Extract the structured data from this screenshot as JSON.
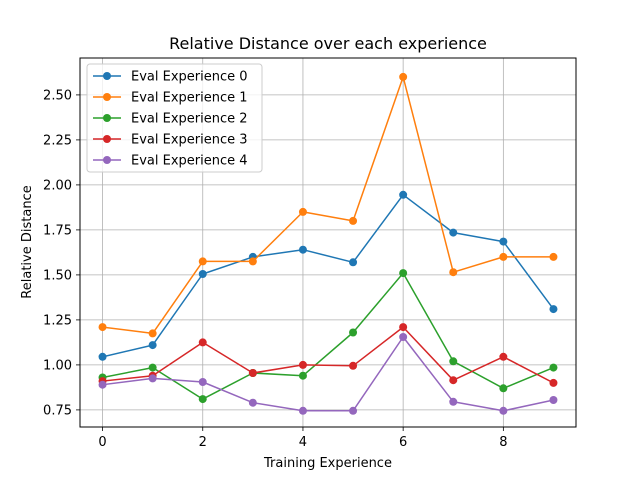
{
  "chart_data": {
    "type": "line",
    "title": "Relative Distance over each experience",
    "xlabel": "Training Experience",
    "ylabel": "Relative Distance",
    "x": [
      0,
      1,
      2,
      3,
      4,
      5,
      6,
      7,
      8,
      9
    ],
    "xlim": [
      -0.45,
      9.45
    ],
    "ylim": [
      0.655,
      2.705
    ],
    "xticks": [
      0,
      2,
      4,
      6,
      8
    ],
    "xtick_labels": [
      "0",
      "2",
      "4",
      "6",
      "8"
    ],
    "yticks": [
      0.75,
      1.0,
      1.25,
      1.5,
      1.75,
      2.0,
      2.25,
      2.5
    ],
    "ytick_labels": [
      "0.75",
      "1.00",
      "1.25",
      "1.50",
      "1.75",
      "2.00",
      "2.25",
      "2.50"
    ],
    "grid": true,
    "legend_position": "top-left",
    "series": [
      {
        "name": "Eval Experience 0",
        "color": "#1f77b4",
        "values": [
          1.045,
          1.11,
          1.505,
          1.6,
          1.64,
          1.57,
          1.945,
          1.735,
          1.685,
          1.31
        ]
      },
      {
        "name": "Eval Experience 1",
        "color": "#ff7f0e",
        "values": [
          1.21,
          1.175,
          1.575,
          1.575,
          1.85,
          1.8,
          2.6,
          1.515,
          1.6,
          1.6
        ]
      },
      {
        "name": "Eval Experience 2",
        "color": "#2ca02c",
        "values": [
          0.93,
          0.985,
          0.81,
          0.955,
          0.94,
          1.18,
          1.51,
          1.02,
          0.87,
          0.985
        ]
      },
      {
        "name": "Eval Experience 3",
        "color": "#d62728",
        "values": [
          0.91,
          0.94,
          1.125,
          0.955,
          1.0,
          0.995,
          1.21,
          0.915,
          1.045,
          0.9
        ]
      },
      {
        "name": "Eval Experience 4",
        "color": "#9467bd",
        "values": [
          0.89,
          0.925,
          0.905,
          0.79,
          0.745,
          0.745,
          1.155,
          0.795,
          0.745,
          0.805
        ]
      }
    ]
  }
}
